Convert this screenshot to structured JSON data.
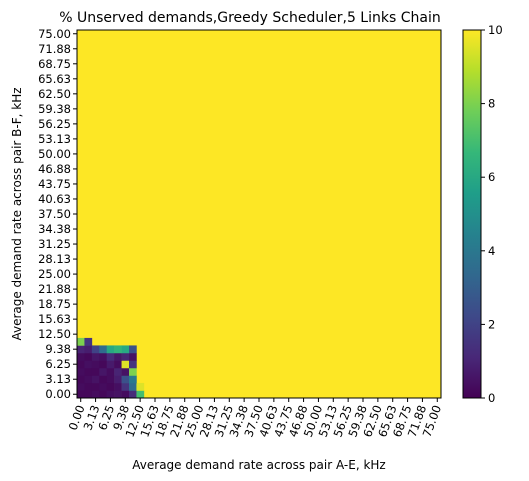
{
  "chart_data": {
    "type": "heatmap",
    "title": "% Unserved demands,Greedy Scheduler,5 Links Chain",
    "xlabel": "Average demand rate across pair A-E, kHz",
    "ylabel": "Average demand rate across pair B-F, kHz",
    "x_ticks": [
      "0.00",
      "3.13",
      "6.25",
      "9.38",
      "12.50",
      "15.63",
      "18.75",
      "21.88",
      "25.00",
      "28.13",
      "31.25",
      "34.38",
      "37.50",
      "40.63",
      "43.75",
      "46.88",
      "50.00",
      "53.13",
      "56.25",
      "59.38",
      "62.50",
      "65.63",
      "68.75",
      "71.88",
      "75.00"
    ],
    "y_ticks": [
      "0.00",
      "3.13",
      "6.25",
      "9.38",
      "12.50",
      "15.63",
      "18.75",
      "21.88",
      "25.00",
      "28.13",
      "31.25",
      "34.38",
      "37.50",
      "40.63",
      "43.75",
      "46.88",
      "50.00",
      "53.13",
      "56.25",
      "59.38",
      "62.50",
      "65.63",
      "68.75",
      "71.88",
      "75.00"
    ],
    "grid_size": 49,
    "step": 1.5625,
    "xlim": [
      0,
      75
    ],
    "ylim": [
      0,
      75
    ],
    "fill_value": 10,
    "low_region": {
      "note_rows_from_bottom": "each row lists values for x index 0..8 (0.00 .. 12.50 kHz step 1.5625)",
      "rows": [
        [
          0.2,
          0.2,
          0.3,
          0.2,
          0.4,
          0.5,
          0.3,
          1.2,
          7.0
        ],
        [
          0.3,
          0.2,
          0.2,
          0.3,
          0.2,
          0.4,
          1.5,
          3.5,
          9.5
        ],
        [
          0.2,
          0.3,
          0.5,
          0.2,
          0.3,
          0.8,
          2.5,
          4.0,
          10
        ],
        [
          0.3,
          0.2,
          0.2,
          0.6,
          0.3,
          1.0,
          0.5,
          8.0,
          10
        ],
        [
          0.2,
          0.4,
          0.3,
          0.2,
          0.7,
          0.3,
          9.5,
          1.5,
          10
        ],
        [
          0.3,
          0.2,
          0.6,
          0.4,
          1.2,
          0.6,
          1.0,
          0.5,
          10
        ],
        [
          1.0,
          0.8,
          2.0,
          3.5,
          6.0,
          6.5,
          6.0,
          2.5,
          10
        ],
        [
          8.0,
          1.5,
          10,
          10,
          10,
          10,
          10,
          10,
          10
        ]
      ]
    },
    "colorbar": {
      "min": 0,
      "max": 10,
      "ticks": [
        "0",
        "2",
        "4",
        "6",
        "8",
        "10"
      ],
      "colormap": "viridis",
      "colors": [
        "#440154",
        "#482878",
        "#3e4989",
        "#31688e",
        "#26828e",
        "#1f9e89",
        "#35b779",
        "#6ece58",
        "#b5de2b",
        "#fde725"
      ]
    }
  }
}
